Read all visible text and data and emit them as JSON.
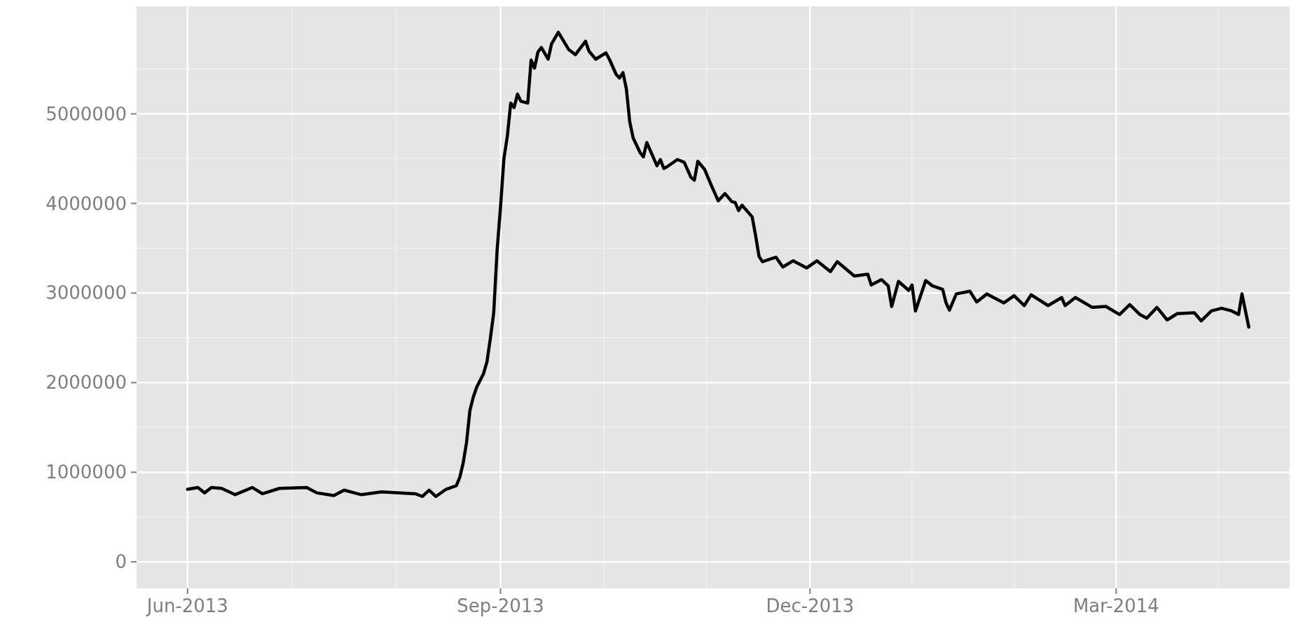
{
  "chart_data": {
    "type": "line",
    "x": [
      "2013-06-01",
      "2013-06-04",
      "2013-06-06",
      "2013-06-08",
      "2013-06-11",
      "2013-06-15",
      "2013-06-20",
      "2013-06-23",
      "2013-06-28",
      "2013-07-06",
      "2013-07-09",
      "2013-07-14",
      "2013-07-17",
      "2013-07-22",
      "2013-07-28",
      "2013-08-07",
      "2013-08-09",
      "2013-08-11",
      "2013-08-13",
      "2013-08-16",
      "2013-08-19",
      "2013-08-20",
      "2013-08-21",
      "2013-08-22",
      "2013-08-23",
      "2013-08-24",
      "2013-08-25",
      "2013-08-27",
      "2013-08-28",
      "2013-08-29",
      "2013-08-30",
      "2013-08-31",
      "2013-09-01",
      "2013-09-02",
      "2013-09-03",
      "2013-09-04",
      "2013-09-05",
      "2013-09-06",
      "2013-09-07",
      "2013-09-09",
      "2013-09-10",
      "2013-09-11",
      "2013-09-12",
      "2013-09-13",
      "2013-09-15",
      "2013-09-16",
      "2013-09-18",
      "2013-09-21",
      "2013-09-23",
      "2013-09-26",
      "2013-09-27",
      "2013-09-29",
      "2013-10-02",
      "2013-10-03",
      "2013-10-05",
      "2013-10-06",
      "2013-10-07",
      "2013-10-08",
      "2013-10-09",
      "2013-10-10",
      "2013-10-12",
      "2013-10-13",
      "2013-10-14",
      "2013-10-17",
      "2013-10-18",
      "2013-10-19",
      "2013-10-20",
      "2013-10-23",
      "2013-10-25",
      "2013-10-27",
      "2013-10-28",
      "2013-10-29",
      "2013-10-31",
      "2013-11-02",
      "2013-11-04",
      "2013-11-06",
      "2013-11-08",
      "2013-11-09",
      "2013-11-10",
      "2013-11-11",
      "2013-11-14",
      "2013-11-15",
      "2013-11-16",
      "2013-11-17",
      "2013-11-21",
      "2013-11-23",
      "2013-11-26",
      "2013-11-30",
      "2013-12-03",
      "2013-12-07",
      "2013-12-09",
      "2013-12-14",
      "2013-12-18",
      "2013-12-19",
      "2013-12-22",
      "2013-12-24",
      "2013-12-25",
      "2013-12-27",
      "2013-12-30",
      "2013-12-31",
      "2014-01-01",
      "2014-01-04",
      "2014-01-06",
      "2014-01-09",
      "2014-01-10",
      "2014-01-11",
      "2014-01-13",
      "2014-01-17",
      "2014-01-19",
      "2014-01-22",
      "2014-01-27",
      "2014-01-30",
      "2014-02-02",
      "2014-02-04",
      "2014-02-09",
      "2014-02-13",
      "2014-02-14",
      "2014-02-17",
      "2014-02-22",
      "2014-02-26",
      "2014-03-02",
      "2014-03-05",
      "2014-03-08",
      "2014-03-10",
      "2014-03-13",
      "2014-03-16",
      "2014-03-19",
      "2014-03-24",
      "2014-03-26",
      "2014-03-29",
      "2014-04-01",
      "2014-04-04",
      "2014-04-06",
      "2014-04-07",
      "2014-04-09"
    ],
    "series": [
      {
        "color": "#000000",
        "values": [
          810000,
          830000,
          770000,
          830000,
          820000,
          750000,
          830000,
          760000,
          820000,
          830000,
          770000,
          740000,
          800000,
          750000,
          780000,
          760000,
          730000,
          800000,
          730000,
          810000,
          850000,
          940000,
          1100000,
          1330000,
          1690000,
          1840000,
          1950000,
          2100000,
          2230000,
          2490000,
          2780000,
          3480000,
          3960000,
          4500000,
          4750000,
          5120000,
          5070000,
          5220000,
          5140000,
          5120000,
          5600000,
          5510000,
          5690000,
          5740000,
          5610000,
          5780000,
          5910000,
          5720000,
          5660000,
          5810000,
          5700000,
          5610000,
          5680000,
          5610000,
          5440000,
          5400000,
          5460000,
          5280000,
          4910000,
          4730000,
          4570000,
          4520000,
          4680000,
          4420000,
          4490000,
          4390000,
          4410000,
          4490000,
          4460000,
          4290000,
          4260000,
          4470000,
          4380000,
          4200000,
          4030000,
          4110000,
          4020000,
          4010000,
          3920000,
          3980000,
          3850000,
          3640000,
          3410000,
          3350000,
          3400000,
          3290000,
          3360000,
          3280000,
          3360000,
          3240000,
          3350000,
          3190000,
          3210000,
          3090000,
          3150000,
          3080000,
          2850000,
          3130000,
          3030000,
          3090000,
          2800000,
          3140000,
          3080000,
          3040000,
          2890000,
          2810000,
          2990000,
          3020000,
          2900000,
          2990000,
          2890000,
          2970000,
          2860000,
          2980000,
          2860000,
          2950000,
          2860000,
          2950000,
          2840000,
          2850000,
          2760000,
          2870000,
          2760000,
          2720000,
          2840000,
          2700000,
          2770000,
          2780000,
          2690000,
          2800000,
          2830000,
          2800000,
          2760000,
          2990000,
          2620000
        ]
      }
    ],
    "xlim": [
      "2013-05-17",
      "2014-04-21"
    ],
    "ylim": [
      -296000,
      6200000
    ],
    "xticks": [
      {
        "value": "2013-06-01",
        "label": "Jun-2013"
      },
      {
        "value": "2013-09-01",
        "label": "Sep-2013"
      },
      {
        "value": "2013-12-01",
        "label": "Dec-2013"
      },
      {
        "value": "2014-03-01",
        "label": "Mar-2014"
      }
    ],
    "yticks": [
      0,
      1000000,
      2000000,
      3000000,
      4000000,
      5000000
    ],
    "grid": true,
    "line_style": "solid"
  }
}
